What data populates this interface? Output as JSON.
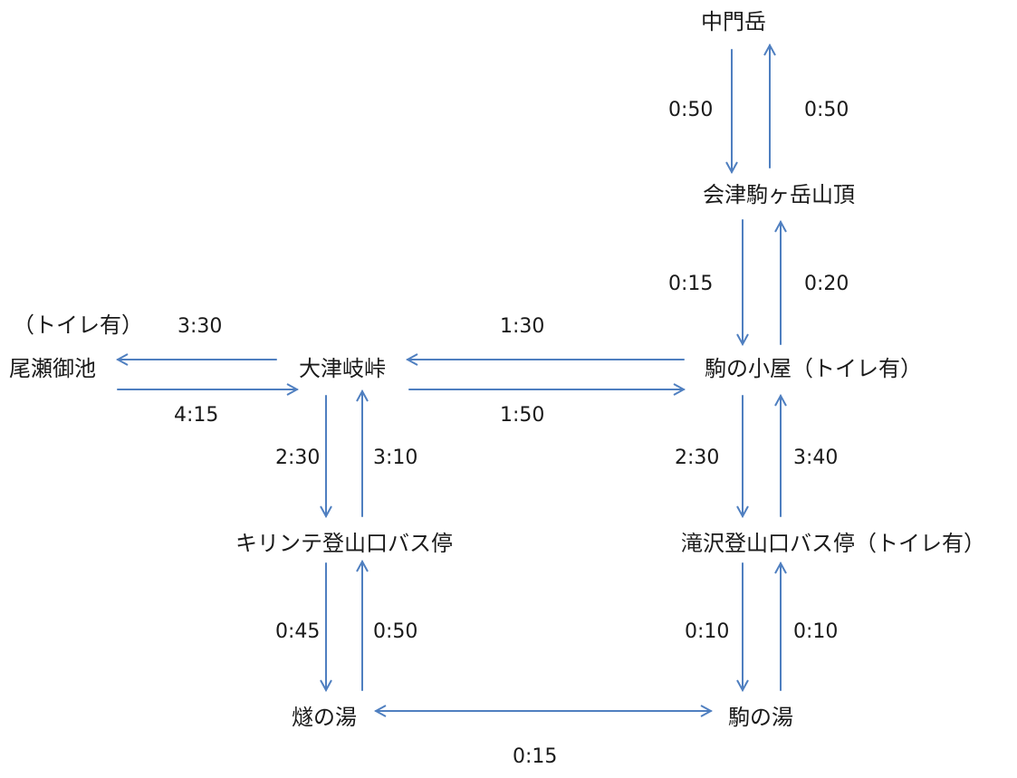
{
  "accent_color": "#4f7fc0",
  "nodes": {
    "nakamon": "中門岳",
    "summit": "会津駒ヶ岳山頂",
    "hut": "駒の小屋（トイレ有）",
    "oze_toilet": "（トイレ有）",
    "oze": "尾瀬御池",
    "otsuki": "大津岐峠",
    "kirinte": "キリンテ登山口バス停",
    "takizawa": "滝沢登山口バス停（トイレ有）",
    "tomoshibi": "燧の湯",
    "komanoyu": "駒の湯"
  },
  "times": {
    "nakamon_down": "0:50",
    "nakamon_up": "0:50",
    "summit_down": "0:15",
    "summit_up": "0:20",
    "otsuki_to_oze": "3:30",
    "oze_to_otsuki": "4:15",
    "hut_to_otsuki": "1:30",
    "otsuki_to_hut": "1:50",
    "otsuki_down": "2:30",
    "otsuki_up": "3:10",
    "hut_down": "2:30",
    "hut_up": "3:40",
    "kirinte_down": "0:45",
    "kirinte_up": "0:50",
    "takizawa_down": "0:10",
    "takizawa_up": "0:10",
    "yu_link": "0:15"
  }
}
